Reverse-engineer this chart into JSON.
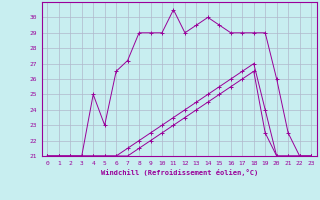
{
  "xlabel": "Windchill (Refroidissement éolien,°C)",
  "bg_color": "#c8eef0",
  "grid_color": "#b0b8cc",
  "line_color": "#990099",
  "xlim": [
    -0.5,
    23.5
  ],
  "ylim": [
    21,
    31
  ],
  "xticks": [
    0,
    1,
    2,
    3,
    4,
    5,
    6,
    7,
    8,
    9,
    10,
    11,
    12,
    13,
    14,
    15,
    16,
    17,
    18,
    19,
    20,
    21,
    22,
    23
  ],
  "yticks": [
    21,
    22,
    23,
    24,
    25,
    26,
    27,
    28,
    29,
    30
  ],
  "line1_x": [
    0,
    1,
    2,
    3,
    4,
    5,
    6,
    7,
    8,
    9,
    10,
    11,
    12,
    13,
    14,
    15,
    16,
    17,
    18,
    19,
    20,
    21,
    22,
    23
  ],
  "line1_y": [
    21,
    21,
    21,
    21,
    25,
    23,
    26.5,
    27.2,
    29,
    29,
    29,
    30.5,
    29,
    29.5,
    30,
    29.5,
    29,
    29,
    29,
    29,
    26,
    22.5,
    21,
    21
  ],
  "line2_x": [
    0,
    1,
    2,
    3,
    4,
    5,
    6,
    7,
    8,
    9,
    10,
    11,
    12,
    13,
    14,
    15,
    16,
    17,
    18,
    19,
    20,
    21,
    22,
    23
  ],
  "line2_y": [
    21,
    21,
    21,
    21,
    21,
    21,
    21,
    21.5,
    22,
    22.5,
    23,
    23.5,
    24,
    24.5,
    25,
    25.5,
    26,
    26.5,
    27,
    24,
    21,
    21,
    21,
    21
  ],
  "line3_x": [
    0,
    1,
    2,
    3,
    4,
    5,
    6,
    7,
    8,
    9,
    10,
    11,
    12,
    13,
    14,
    15,
    16,
    17,
    18,
    19,
    20,
    21,
    22,
    23
  ],
  "line3_y": [
    21,
    21,
    21,
    21,
    21,
    21,
    21,
    21,
    21.5,
    22,
    22.5,
    23,
    23.5,
    24,
    24.5,
    25,
    25.5,
    26,
    26.5,
    22.5,
    21,
    21,
    21,
    21
  ]
}
